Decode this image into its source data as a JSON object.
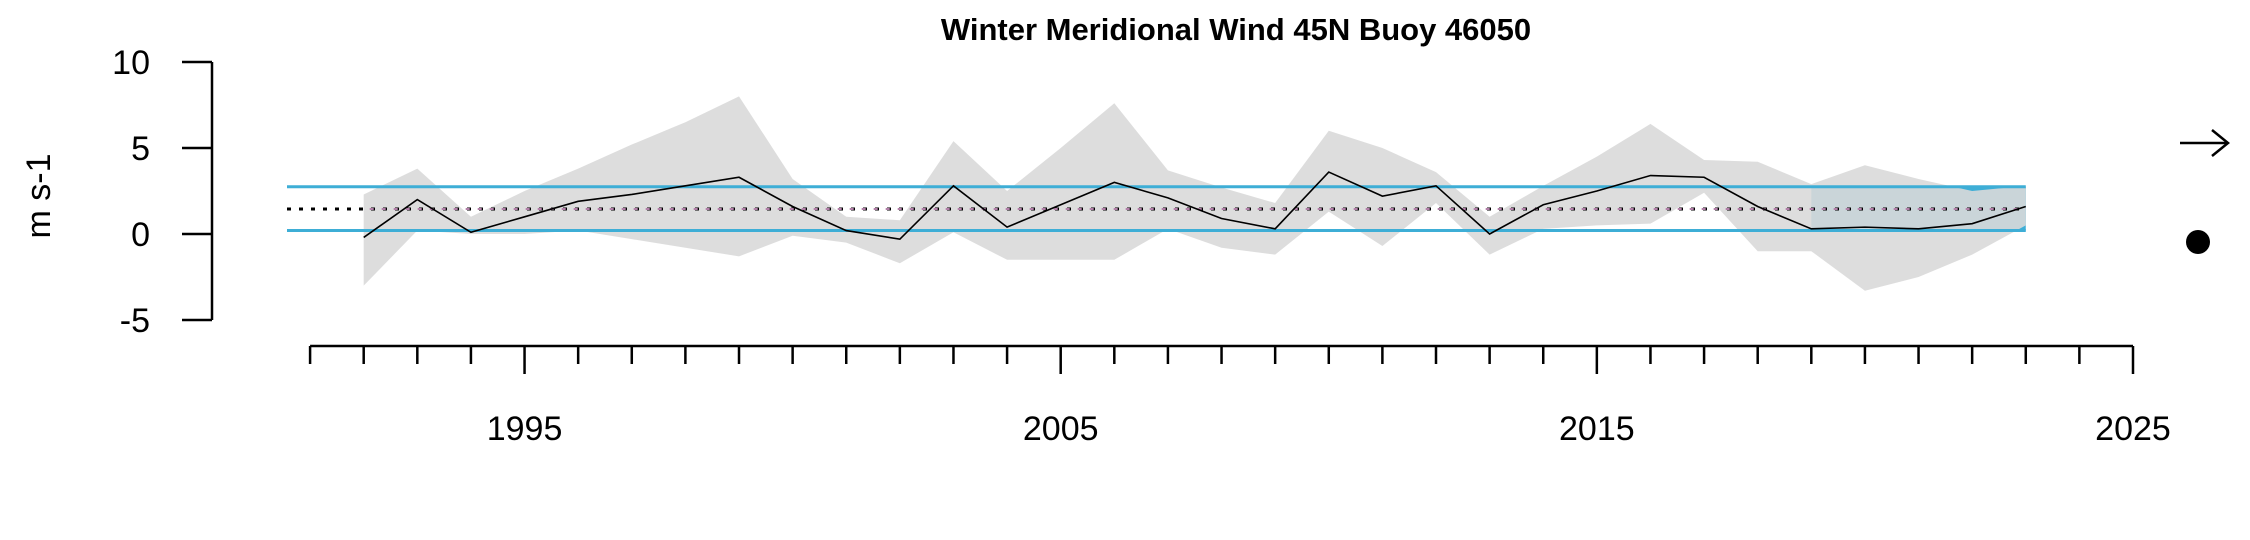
{
  "chart_data": {
    "type": "line",
    "title": "Winter Meridional Wind 45N Buoy 46050",
    "ylabel": "m s-1",
    "xlabel": "",
    "xlim": [
      1990.7,
      2025
    ],
    "ylim": [
      -5,
      10
    ],
    "x_ticks": [
      1995,
      2005,
      2015,
      2025
    ],
    "y_ticks": [
      -5,
      0,
      5,
      10
    ],
    "x_minor_ticks_every": 1,
    "grid": false,
    "mean": 1.45,
    "mean_plus_sd": 2.75,
    "mean_minus_sd": 0.2,
    "trend_highlight_start": 2019,
    "trend_highlight_end": 2023,
    "colors": {
      "band_line": "#3eaed6",
      "highlight_fill": "#3eaed6",
      "uncertainty_fill": "#d9d9d9",
      "series_line": "#000000",
      "mean_line": "#000000",
      "recent_mean_line": "#b27fa8"
    },
    "trend_symbol": "right-arrow",
    "mean_symbol": "filled-circle",
    "series": [
      {
        "x": [
          1992,
          1993,
          1994,
          1995,
          1996,
          1997,
          1998,
          1999,
          2000,
          2001,
          2002,
          2003,
          2004,
          2005,
          2006,
          2007,
          2008,
          2009,
          2010,
          2011,
          2012,
          2013,
          2014,
          2015,
          2016,
          2017,
          2018,
          2019,
          2020,
          2021,
          2022,
          2023
        ],
        "values": [
          -0.2,
          2.0,
          0.1,
          1.0,
          1.9,
          2.3,
          2.8,
          3.3,
          1.6,
          0.2,
          -0.3,
          2.8,
          0.4,
          1.7,
          3.0,
          2.1,
          0.9,
          0.3,
          3.6,
          2.2,
          2.8,
          0.0,
          1.7,
          2.5,
          3.4,
          3.3,
          1.6,
          0.3,
          0.4,
          0.3,
          0.6,
          1.6
        ],
        "upper": [
          2.3,
          3.8,
          1.0,
          2.5,
          3.8,
          5.2,
          6.5,
          8.0,
          3.2,
          1.0,
          0.8,
          5.4,
          2.5,
          5.0,
          7.6,
          3.7,
          2.7,
          1.8,
          6.0,
          5.0,
          3.6,
          1.0,
          2.8,
          4.5,
          6.4,
          4.3,
          4.2,
          2.9,
          4.0,
          3.2,
          2.5,
          2.8
        ],
        "lower": [
          -3.0,
          0.2,
          0.0,
          0.0,
          0.2,
          -0.3,
          -0.8,
          -1.3,
          -0.1,
          -0.5,
          -1.7,
          0.1,
          -1.5,
          -1.5,
          -1.5,
          0.3,
          -0.8,
          -1.2,
          1.3,
          -0.7,
          1.8,
          -1.2,
          0.3,
          0.5,
          0.6,
          2.4,
          -1.0,
          -1.0,
          -3.3,
          -2.5,
          -1.2,
          0.5
        ]
      }
    ]
  }
}
